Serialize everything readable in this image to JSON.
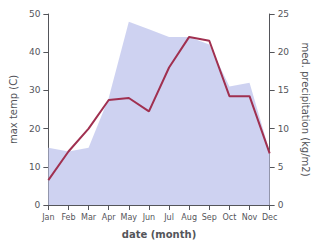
{
  "chart_data": {
    "type": "line",
    "categories": [
      "Jan",
      "Feb",
      "Mar",
      "Apr",
      "May",
      "Jun",
      "Jul",
      "Aug",
      "Sep",
      "Oct",
      "Nov",
      "Dec"
    ],
    "series": [
      {
        "type": "area",
        "axis": "y2",
        "color": "#c5caee",
        "values": [
          7.5,
          7,
          7.5,
          14,
          24,
          23,
          22,
          22,
          21,
          15.5,
          16,
          7
        ]
      },
      {
        "type": "line",
        "color": "#a03050",
        "values": [
          6.5,
          14,
          20,
          27.5,
          28,
          24.5,
          36,
          44,
          43,
          28.5,
          28.5,
          13.5
        ]
      }
    ],
    "xlabel": "date (month)",
    "ylabel": "max temp (C)",
    "y2label": "med. precipitation (kg/m2)",
    "ylim": [
      0,
      50
    ],
    "yticks": [
      0,
      10,
      20,
      30,
      40,
      50
    ],
    "y2lim": [
      0,
      25
    ],
    "y2ticks": [
      0,
      5,
      10,
      15,
      20,
      25
    ],
    "grid": false
  }
}
